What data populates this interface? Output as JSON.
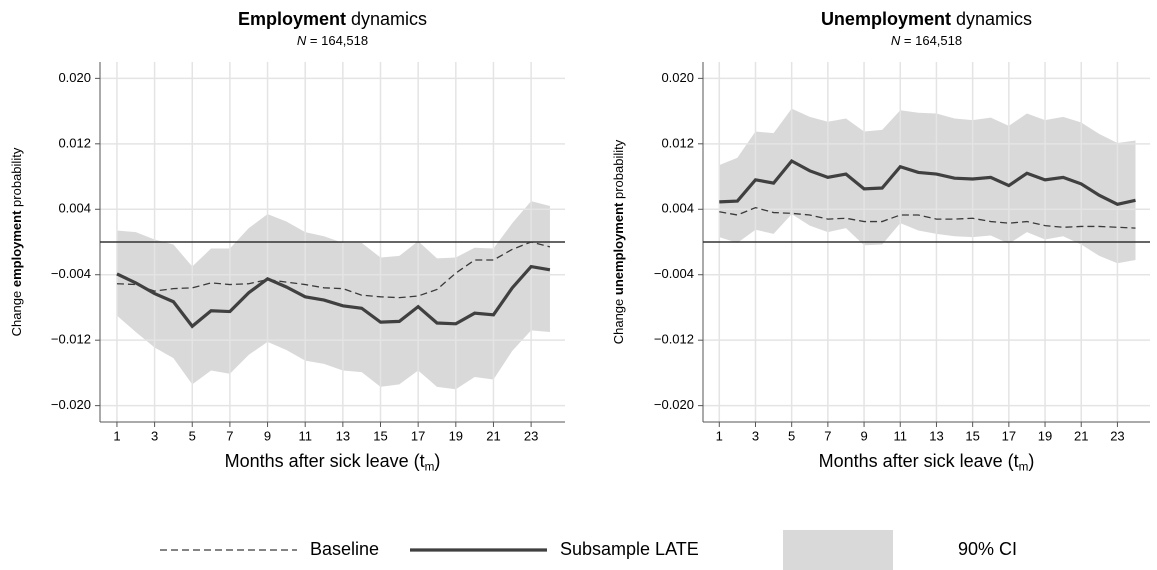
{
  "chart_data": [
    {
      "type": "line",
      "title": [
        {
          "text": "Employment",
          "bold": true
        },
        {
          "text": "dynamics"
        }
      ],
      "subtitle": [
        {
          "text": "N",
          "italic": true
        },
        {
          "text": "= 164,518"
        }
      ],
      "y_label": [
        {
          "text": "Change"
        },
        {
          "text": "employment",
          "bold": true
        },
        {
          "text": "probability"
        }
      ],
      "x_label": [
        {
          "text": "Months after sick leave (t"
        },
        {
          "text": "m",
          "subscript": true
        },
        {
          "text": ")"
        }
      ],
      "x": [
        1,
        2,
        3,
        4,
        5,
        6,
        7,
        8,
        9,
        10,
        11,
        12,
        13,
        14,
        15,
        16,
        17,
        18,
        19,
        20,
        21,
        22,
        23,
        24
      ],
      "xlim": [
        0.1,
        24.8
      ],
      "xticks": [
        1,
        3,
        5,
        7,
        9,
        11,
        13,
        15,
        17,
        19,
        21,
        23
      ],
      "ylim": [
        -0.022,
        0.022
      ],
      "yticks": [
        {
          "value": -0.02,
          "label": "−0.020"
        },
        {
          "value": -0.012,
          "label": "−0.012"
        },
        {
          "value": -0.004,
          "label": "−0.004"
        },
        {
          "value": 0.004,
          "label": "0.004"
        },
        {
          "value": 0.012,
          "label": "0.012"
        },
        {
          "value": 0.02,
          "label": "0.020"
        }
      ],
      "grid": true,
      "hline": 0,
      "legend": "bottom",
      "series": [
        {
          "name": "Baseline",
          "style": "dashed",
          "color": "#3a3a3a",
          "values": [
            -0.0051,
            -0.0052,
            -0.006,
            -0.0057,
            -0.0056,
            -0.005,
            -0.0052,
            -0.0051,
            -0.0046,
            -0.0049,
            -0.0052,
            -0.0056,
            -0.0057,
            -0.0065,
            -0.0067,
            -0.0068,
            -0.0066,
            -0.0058,
            -0.0038,
            -0.0022,
            -0.0022,
            -0.0009,
            0.0,
            -0.0006
          ]
        },
        {
          "name": "Subsample LATE",
          "style": "solid",
          "color": "#404040",
          "values": [
            -0.0039,
            -0.005,
            -0.0063,
            -0.0073,
            -0.0103,
            -0.0084,
            -0.0085,
            -0.0062,
            -0.0045,
            -0.0055,
            -0.0067,
            -0.0071,
            -0.0078,
            -0.0081,
            -0.0098,
            -0.0097,
            -0.0079,
            -0.0099,
            -0.01,
            -0.0087,
            -0.0089,
            -0.0056,
            -0.003,
            -0.0034
          ]
        },
        {
          "name": "90% CI",
          "style": "band",
          "color": "#d9d9d9",
          "lower": [
            -0.009,
            -0.011,
            -0.0129,
            -0.0142,
            -0.0174,
            -0.0157,
            -0.0161,
            -0.0138,
            -0.0122,
            -0.0132,
            -0.0145,
            -0.0149,
            -0.0157,
            -0.0159,
            -0.0177,
            -0.0174,
            -0.0157,
            -0.0177,
            -0.018,
            -0.0165,
            -0.0168,
            -0.0133,
            -0.0108,
            -0.011
          ],
          "upper": [
            0.0014,
            0.0012,
            0.0003,
            -0.0003,
            -0.003,
            -0.0008,
            -0.0008,
            0.0017,
            0.0034,
            0.0025,
            0.0012,
            0.0007,
            -0.0001,
            -0.0001,
            -0.0019,
            -0.0017,
            0.0001,
            -0.002,
            -0.0019,
            -0.0007,
            -0.0008,
            0.0023,
            0.005,
            0.0044
          ]
        }
      ]
    },
    {
      "type": "line",
      "title": [
        {
          "text": "Unemployment",
          "bold": true
        },
        {
          "text": "dynamics"
        }
      ],
      "subtitle": [
        {
          "text": "N",
          "italic": true
        },
        {
          "text": "= 164,518"
        }
      ],
      "y_label": [
        {
          "text": "Change"
        },
        {
          "text": "unemployment",
          "bold": true
        },
        {
          "text": "probability"
        }
      ],
      "x_label": [
        {
          "text": "Months after sick leave (t"
        },
        {
          "text": "m",
          "subscript": true
        },
        {
          "text": ")"
        }
      ],
      "x": [
        1,
        2,
        3,
        4,
        5,
        6,
        7,
        8,
        9,
        10,
        11,
        12,
        13,
        14,
        15,
        16,
        17,
        18,
        19,
        20,
        21,
        22,
        23,
        24
      ],
      "xlim": [
        0.1,
        24.8
      ],
      "xticks": [
        1,
        3,
        5,
        7,
        9,
        11,
        13,
        15,
        17,
        19,
        21,
        23
      ],
      "ylim": [
        -0.022,
        0.022
      ],
      "yticks": [
        {
          "value": -0.02,
          "label": "−0.020"
        },
        {
          "value": -0.012,
          "label": "−0.012"
        },
        {
          "value": -0.004,
          "label": "−0.004"
        },
        {
          "value": 0.004,
          "label": "0.004"
        },
        {
          "value": 0.012,
          "label": "0.012"
        },
        {
          "value": 0.02,
          "label": "0.020"
        }
      ],
      "grid": true,
      "hline": 0,
      "series": [
        {
          "name": "Baseline",
          "style": "dashed",
          "color": "#3a3a3a",
          "values": [
            0.0037,
            0.0033,
            0.0042,
            0.0036,
            0.0035,
            0.0033,
            0.0028,
            0.0029,
            0.0025,
            0.0025,
            0.0033,
            0.0033,
            0.0028,
            0.0028,
            0.0029,
            0.0025,
            0.0023,
            0.0025,
            0.002,
            0.0018,
            0.0019,
            0.0019,
            0.0018,
            0.0017
          ]
        },
        {
          "name": "Subsample LATE",
          "style": "solid",
          "color": "#404040",
          "values": [
            0.0049,
            0.005,
            0.0076,
            0.0072,
            0.0099,
            0.0087,
            0.0079,
            0.0083,
            0.0065,
            0.0066,
            0.0092,
            0.0085,
            0.0083,
            0.0078,
            0.0077,
            0.0079,
            0.0069,
            0.0084,
            0.0076,
            0.0079,
            0.0071,
            0.0057,
            0.0046,
            0.0051
          ]
        },
        {
          "name": "90% CI",
          "style": "band",
          "color": "#d9d9d9",
          "lower": [
            0.0006,
            -0.0001,
            0.0015,
            0.001,
            0.0034,
            0.002,
            0.0012,
            0.0017,
            -0.0004,
            -0.0003,
            0.0023,
            0.0014,
            0.001,
            0.0007,
            0.0006,
            0.0008,
            -0.0002,
            0.0012,
            0.0003,
            0.0007,
            -0.0003,
            -0.0017,
            -0.0026,
            -0.0022
          ],
          "upper": [
            0.0094,
            0.0103,
            0.0135,
            0.0133,
            0.0163,
            0.0153,
            0.0147,
            0.0151,
            0.0135,
            0.0137,
            0.0161,
            0.0158,
            0.0157,
            0.0151,
            0.0149,
            0.0152,
            0.0142,
            0.0157,
            0.0149,
            0.0153,
            0.0146,
            0.0132,
            0.0121,
            0.0124
          ]
        }
      ]
    }
  ]
}
